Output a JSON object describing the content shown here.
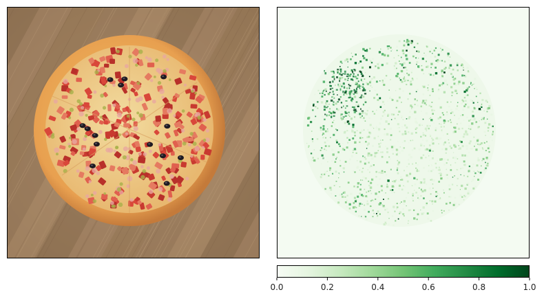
{
  "chart_data": [
    {
      "type": "image",
      "subject": "pizza on wooden table",
      "axes": "hidden"
    },
    {
      "type": "heatmap",
      "colormap": "Greens",
      "pattern": "sparse attribution speckles concentrated on a circular region, strongest in the upper-left",
      "axes": "hidden",
      "colorbar": {
        "orientation": "horizontal",
        "range": [
          0.0,
          1.0
        ],
        "ticks": [
          0.0,
          0.2,
          0.4,
          0.6,
          0.8,
          1.0
        ],
        "tick_labels": [
          "0.0",
          "0.2",
          "0.4",
          "0.6",
          "0.8",
          "1.0"
        ],
        "colors": [
          "#f7fcf5",
          "#e5f5e0",
          "#c7e9c0",
          "#a1d99b",
          "#74c476",
          "#41ab5d",
          "#238b45",
          "#006d2c",
          "#00441b"
        ]
      }
    }
  ]
}
